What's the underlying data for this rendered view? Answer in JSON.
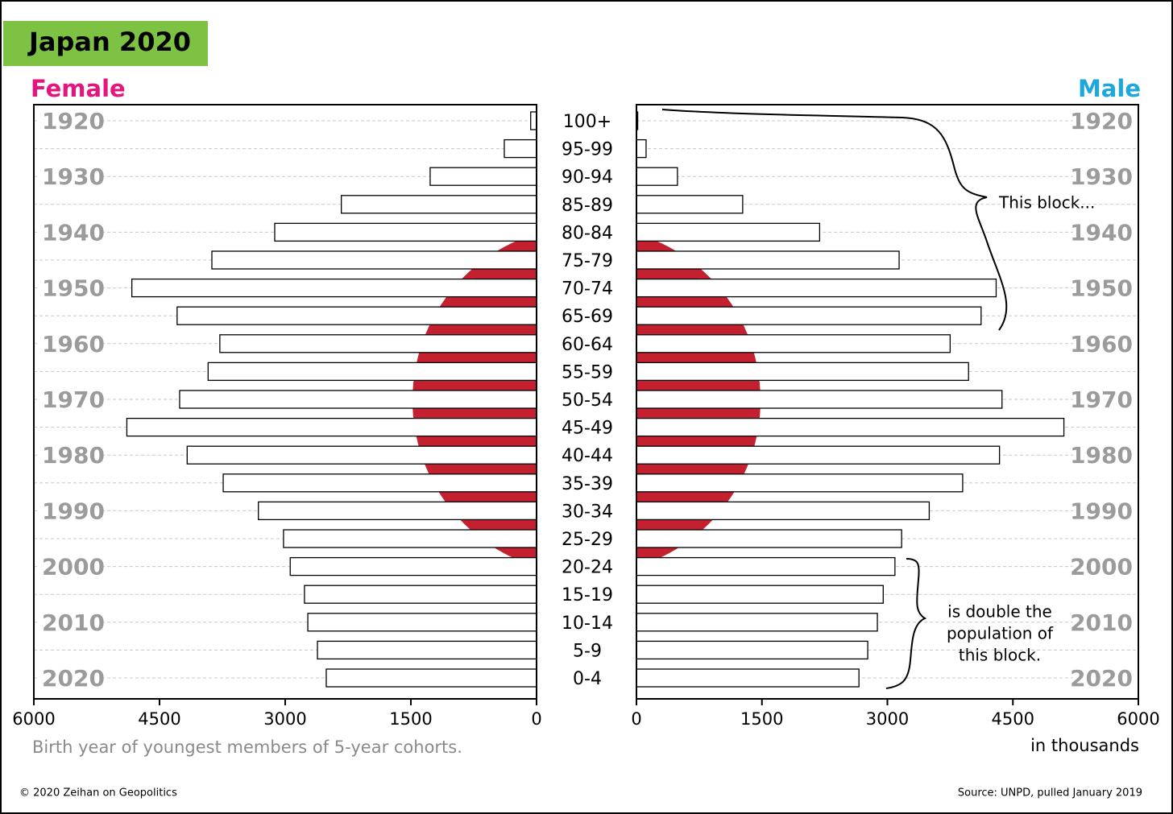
{
  "chart_data": {
    "type": "pyramid",
    "title": "Japan 2020",
    "categories": [
      "100+",
      "95-99",
      "90-94",
      "85-89",
      "80-84",
      "75-79",
      "70-74",
      "65-69",
      "60-64",
      "55-59",
      "50-54",
      "45-49",
      "40-44",
      "35-39",
      "30-34",
      "25-29",
      "20-24",
      "15-19",
      "10-14",
      "5-9",
      "0-4"
    ],
    "birth_years": [
      1920,
      null,
      1930,
      null,
      1940,
      null,
      1950,
      null,
      1960,
      null,
      1970,
      null,
      1980,
      null,
      1990,
      null,
      2000,
      null,
      2010,
      null,
      2020
    ],
    "series": [
      {
        "name": "Female",
        "color": "#e5157f",
        "values": [
          70,
          385,
          1270,
          2330,
          3125,
          3875,
          4830,
          4290,
          3780,
          3920,
          4260,
          4890,
          4170,
          3740,
          3320,
          3020,
          2940,
          2770,
          2730,
          2615,
          2510
        ]
      },
      {
        "name": "Male",
        "color": "#1ea6df",
        "values": [
          15,
          115,
          490,
          1270,
          2190,
          3140,
          4300,
          4120,
          3750,
          3970,
          4370,
          5110,
          4340,
          3900,
          3500,
          3170,
          3090,
          2950,
          2880,
          2765,
          2660
        ]
      }
    ],
    "bar_color": "#ffffff",
    "circle_color": "#c4202f",
    "xlim": [
      0,
      6000
    ],
    "xticks": [
      0,
      1500,
      3000,
      4500,
      6000
    ],
    "xlabel": "Birth year of youngest members of 5-year cohorts.",
    "unit_label": "in thousands",
    "annotations": [
      "This block...",
      [
        "is double the",
        "population of",
        "this block."
      ]
    ],
    "footer_left": "© 2020 Zeihan on Geopolitics",
    "footer_right": "Source: UNPD, pulled January 2019"
  }
}
